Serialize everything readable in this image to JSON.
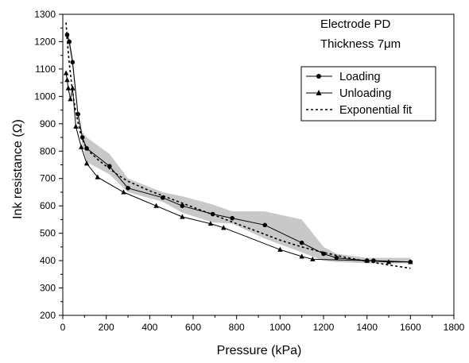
{
  "chart_data": {
    "type": "line",
    "xlabel": "Pressure (kPa)",
    "ylabel": "Ink resistance (Ω)",
    "xlim": [
      0,
      1800
    ],
    "ylim": [
      200,
      1300
    ],
    "xticks": [
      0,
      200,
      400,
      600,
      800,
      1000,
      1200,
      1400,
      1600,
      1800
    ],
    "yticks": [
      200,
      300,
      400,
      500,
      600,
      700,
      800,
      900,
      1000,
      1100,
      1200,
      1300
    ],
    "annotations": [
      "Electrode PD",
      "Thickness 7μm"
    ],
    "legend_position": "top-right",
    "band": {
      "x": [
        20,
        30,
        45,
        70,
        90,
        110,
        215,
        300,
        460,
        550,
        690,
        780,
        930,
        1100,
        1200,
        1260,
        1400,
        1430,
        1600
      ],
      "upper": [
        1250,
        1215,
        1150,
        950,
        870,
        850,
        790,
        700,
        650,
        635,
        605,
        580,
        580,
        550,
        450,
        425,
        410,
        410,
        410
      ],
      "lower": [
        1190,
        1180,
        1100,
        920,
        825,
        760,
        715,
        650,
        615,
        575,
        540,
        535,
        480,
        430,
        400,
        395,
        390,
        390,
        390
      ]
    },
    "series": [
      {
        "name": "Loading",
        "marker": "circle",
        "line": "solid",
        "x": [
          20,
          30,
          45,
          70,
          90,
          110,
          215,
          300,
          460,
          550,
          690,
          780,
          930,
          1100,
          1200,
          1260,
          1400,
          1430,
          1600
        ],
        "y": [
          1225,
          1200,
          1125,
          935,
          850,
          810,
          745,
          665,
          630,
          600,
          570,
          555,
          530,
          465,
          425,
          410,
          400,
          400,
          395
        ]
      },
      {
        "name": "Unloading",
        "marker": "triangle",
        "line": "solid",
        "x": [
          15,
          20,
          25,
          35,
          45,
          60,
          85,
          110,
          160,
          280,
          430,
          550,
          680,
          740,
          1000,
          1100,
          1150,
          1400,
          1500,
          1600
        ],
        "y": [
          1085,
          1060,
          1030,
          990,
          1030,
          890,
          815,
          755,
          705,
          650,
          600,
          560,
          535,
          520,
          440,
          415,
          405,
          400,
          395,
          395
        ]
      },
      {
        "name": "Exponential fit",
        "marker": "none",
        "line": "dashed",
        "x": [
          15,
          20,
          30,
          40,
          50,
          60,
          70,
          80,
          90,
          100,
          120,
          140,
          160,
          200,
          250,
          300,
          400,
          500,
          600,
          700,
          800,
          900,
          1000,
          1100,
          1200,
          1300,
          1400,
          1500,
          1600
        ],
        "y": [
          1270,
          1205,
          1120,
          1050,
          990,
          945,
          905,
          870,
          845,
          825,
          800,
          785,
          770,
          745,
          715,
          690,
          655,
          625,
          595,
          565,
          535,
          505,
          475,
          450,
          430,
          412,
          397,
          384,
          372
        ]
      }
    ]
  }
}
